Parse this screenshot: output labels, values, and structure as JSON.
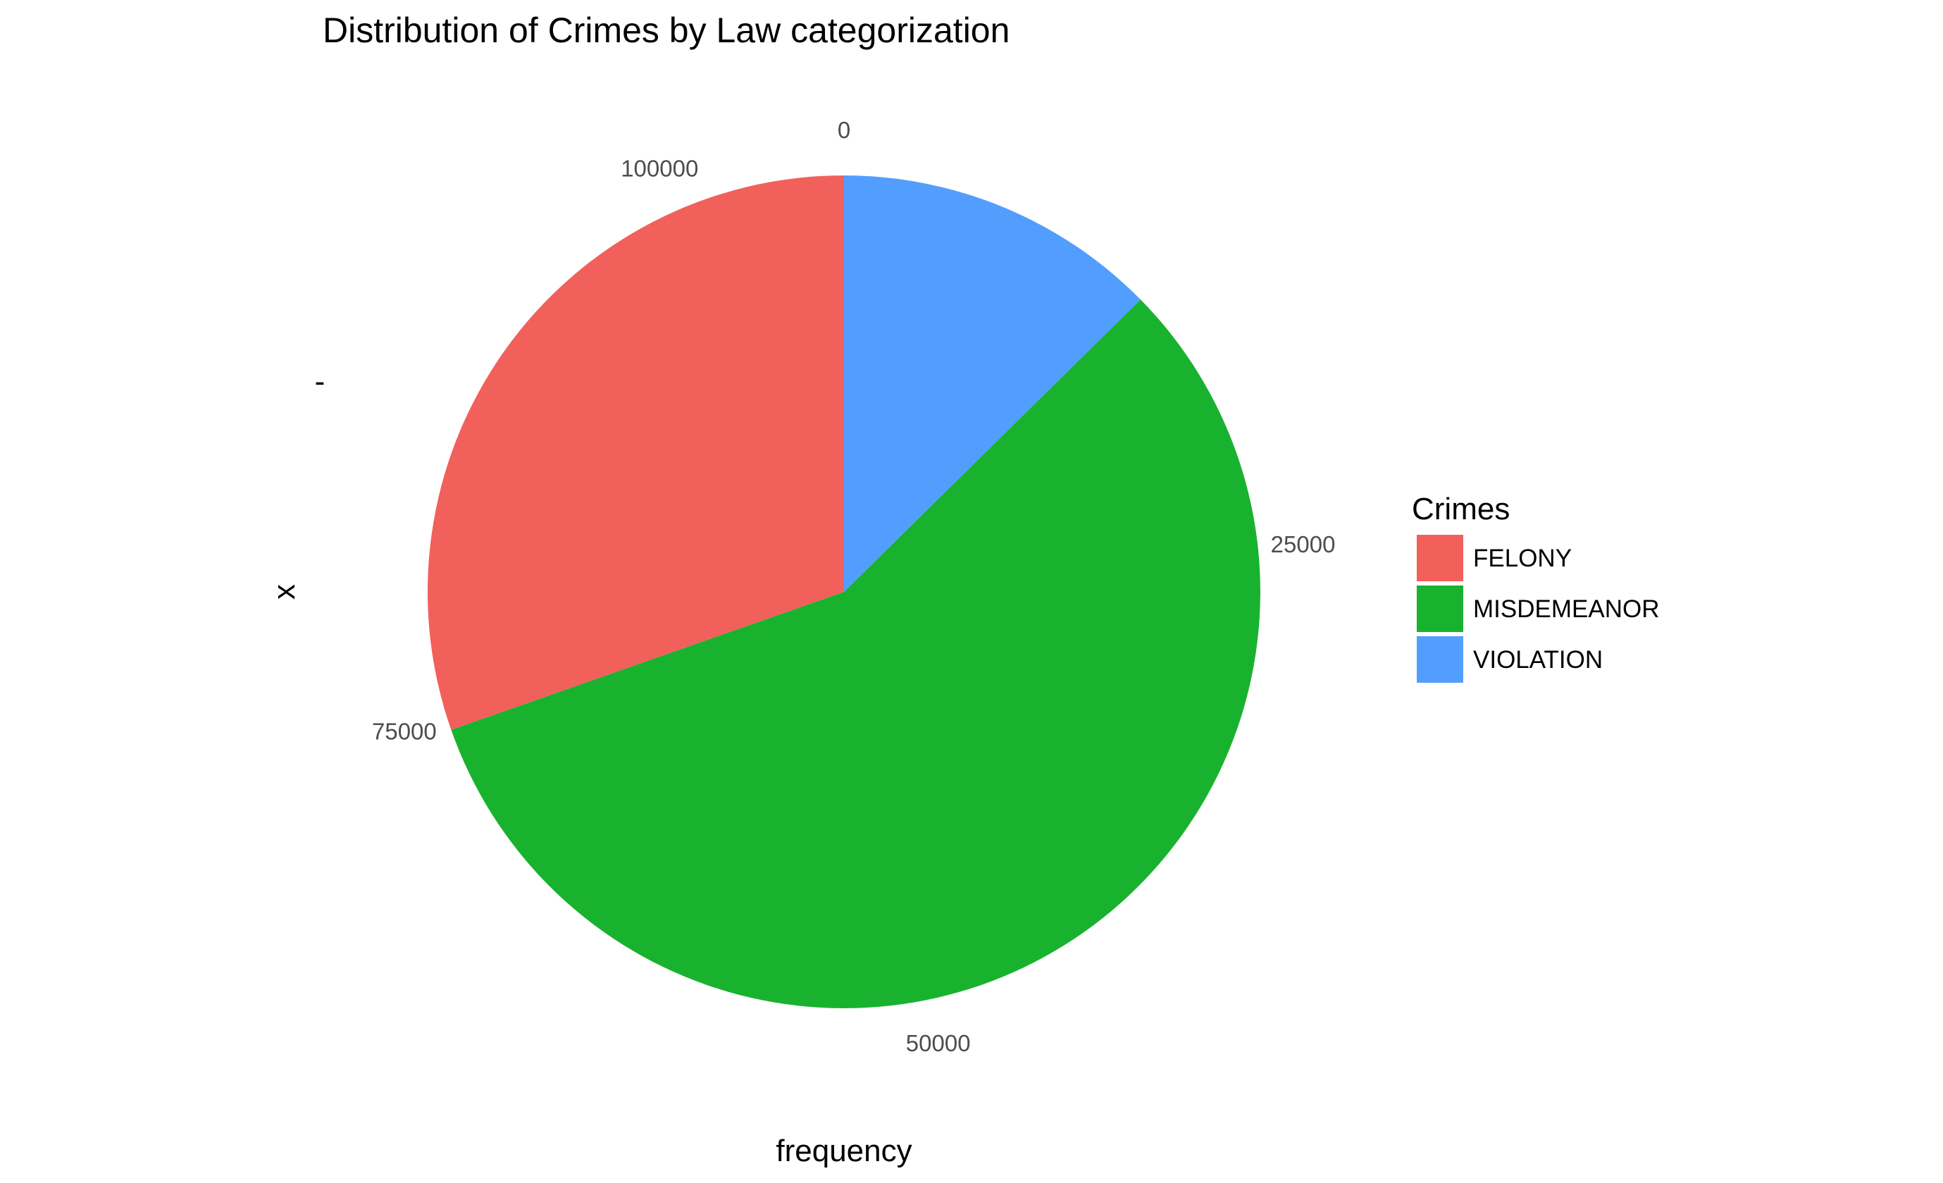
{
  "chart_data": {
    "type": "pie",
    "title": "Distribution of Crimes by Law categorization",
    "xlabel": "frequency",
    "ylabel": "x",
    "y_tick_label": "-",
    "start_angle": "12 o'clock",
    "direction": "clockwise",
    "total": 107000,
    "slices": [
      {
        "label": "VIOLATION",
        "value": 13500,
        "color": "#529EFF"
      },
      {
        "label": "MISDEMEANOR",
        "value": 61000,
        "color": "#19B22F"
      },
      {
        "label": "FELONY",
        "value": 32500,
        "color": "#F2605B"
      }
    ],
    "ticks": [
      {
        "value": 0,
        "label": "0"
      },
      {
        "value": 25000,
        "label": "25000"
      },
      {
        "value": 50000,
        "label": "50000"
      },
      {
        "value": 75000,
        "label": "75000"
      },
      {
        "value": 100000,
        "label": "100000"
      }
    ],
    "legend": {
      "title": "Crimes",
      "placement": "right",
      "items": [
        {
          "label": "FELONY",
          "color": "#F2605B"
        },
        {
          "label": "MISDEMEANOR",
          "color": "#19B22F"
        },
        {
          "label": "VIOLATION",
          "color": "#529EFF"
        }
      ]
    },
    "grid": false
  }
}
